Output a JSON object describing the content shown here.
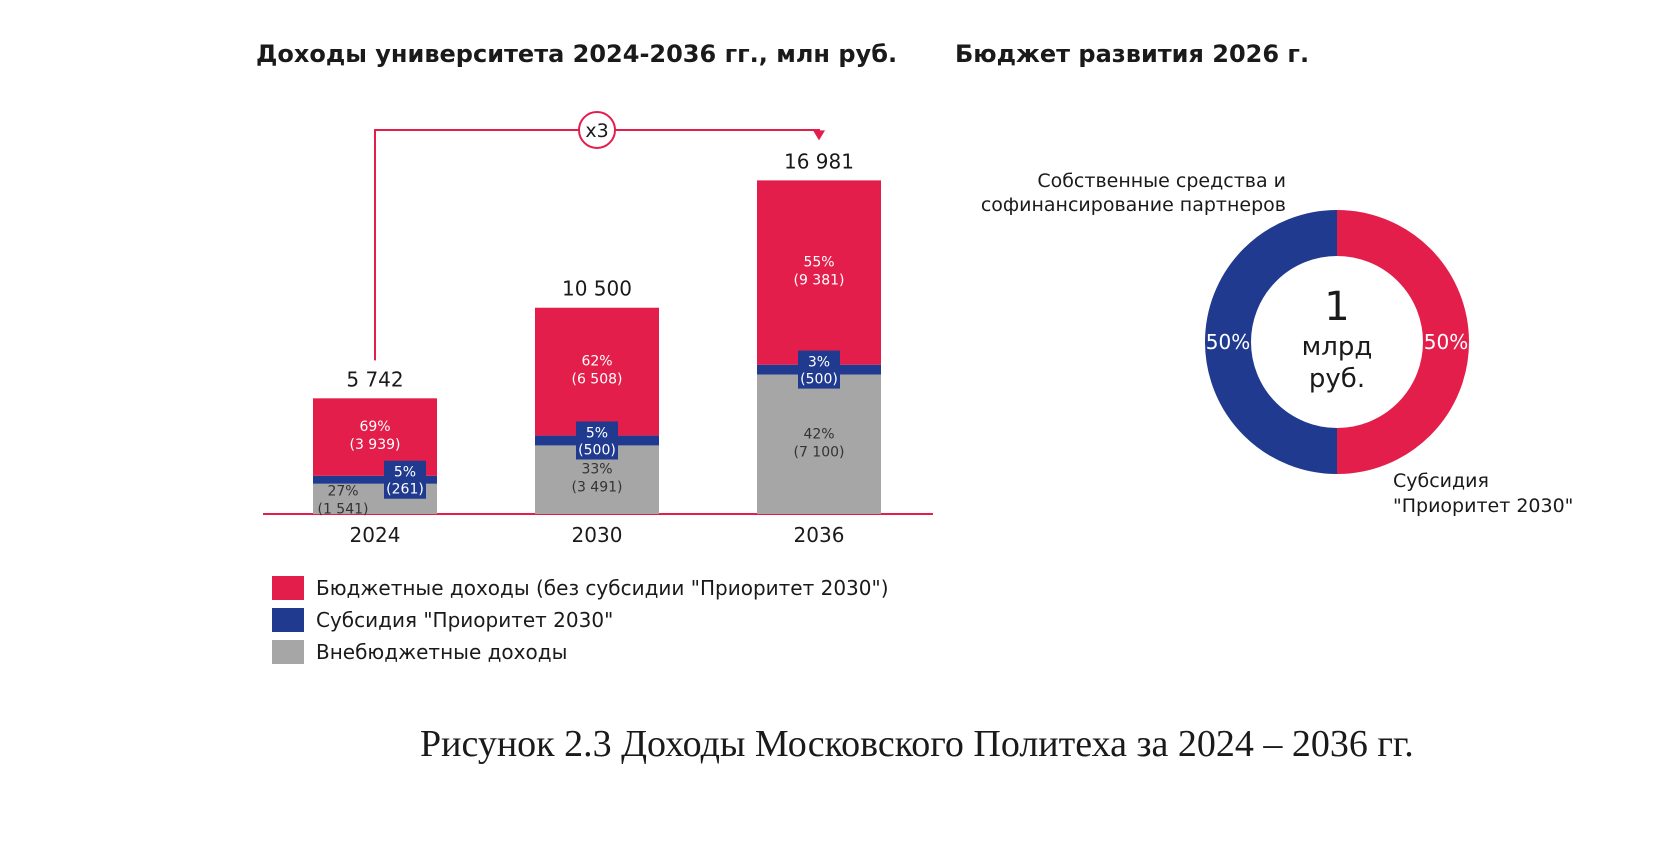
{
  "chart_data": [
    {
      "type": "bar",
      "title": "Доходы университета 2024-2036 гг., млн руб.",
      "categories": [
        "2024",
        "2030",
        "2036"
      ],
      "totals": [
        "5 742",
        "10 500",
        "16 981"
      ],
      "series": [
        {
          "name": "Внебюджетные доходы",
          "color": "#a6a6a6",
          "values": [
            1541,
            3491,
            7100
          ],
          "labels": [
            [
              "27%",
              "(1 541)"
            ],
            [
              "33%",
              "(3 491)"
            ],
            [
              "42%",
              "(7 100)"
            ]
          ]
        },
        {
          "name": "Субсидия \"Приоритет 2030\"",
          "color": "#1f3a8f",
          "values": [
            261,
            500,
            500
          ],
          "labels": [
            [
              "5%",
              "(261)"
            ],
            [
              "5%",
              "(500)"
            ],
            [
              "3%",
              "(500)"
            ]
          ]
        },
        {
          "name": "Бюджетные доходы (без субсидии \"Приоритет 2030\")",
          "color": "#e31e4a",
          "values": [
            3939,
            6508,
            9381
          ],
          "labels": [
            [
              "69%",
              "(3 939)"
            ],
            [
              "62%",
              "(6 508)"
            ],
            [
              "55%",
              "(9 381)"
            ]
          ]
        }
      ],
      "legend_order": [
        2,
        1,
        0
      ],
      "annotation": "x3",
      "ylim": [
        0,
        17000
      ]
    },
    {
      "type": "pie",
      "title": "Бюджет развития 2026 г.",
      "center_text": [
        "1",
        "млрд",
        "руб."
      ],
      "slices": [
        {
          "name_lines": [
            "Субсидия",
            "\"Приоритет 2030\""
          ],
          "value": 50,
          "label": "50%",
          "color": "#e31e4a"
        },
        {
          "name_lines": [
            "Собственные средства и",
            "софинансирование партнеров"
          ],
          "value": 50,
          "label": "50%",
          "color": "#1f3a8f"
        }
      ]
    }
  ],
  "caption": "Рисунок 2.3 Доходы Московского Политеха за 2024 – 2036 гг."
}
